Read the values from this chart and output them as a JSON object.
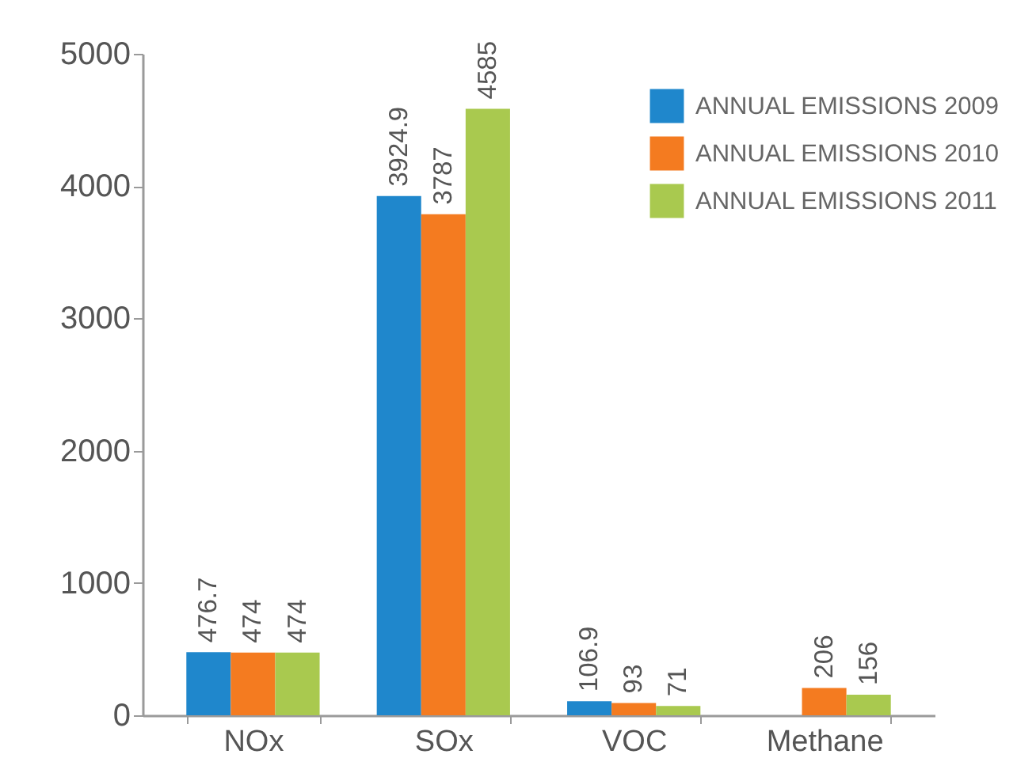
{
  "chart_data": {
    "type": "bar",
    "categories": [
      "NOx",
      "SOx",
      "VOC",
      "Methane"
    ],
    "series": [
      {
        "name": "ANNUAL EMISSIONS 2009",
        "color": "#1f87cc",
        "values": [
          476.7,
          3924.9,
          106.9,
          null
        ]
      },
      {
        "name": "ANNUAL EMISSIONS 2010",
        "color": "#f47b20",
        "values": [
          474,
          3787,
          93,
          206
        ]
      },
      {
        "name": "ANNUAL EMISSIONS 2011",
        "color": "#a9c94f",
        "values": [
          474,
          4585,
          71,
          156
        ]
      }
    ],
    "ylim": [
      0,
      5000
    ],
    "yticks": [
      0,
      1000,
      2000,
      3000,
      4000,
      5000
    ],
    "data_labels": true,
    "legend": "top right"
  }
}
